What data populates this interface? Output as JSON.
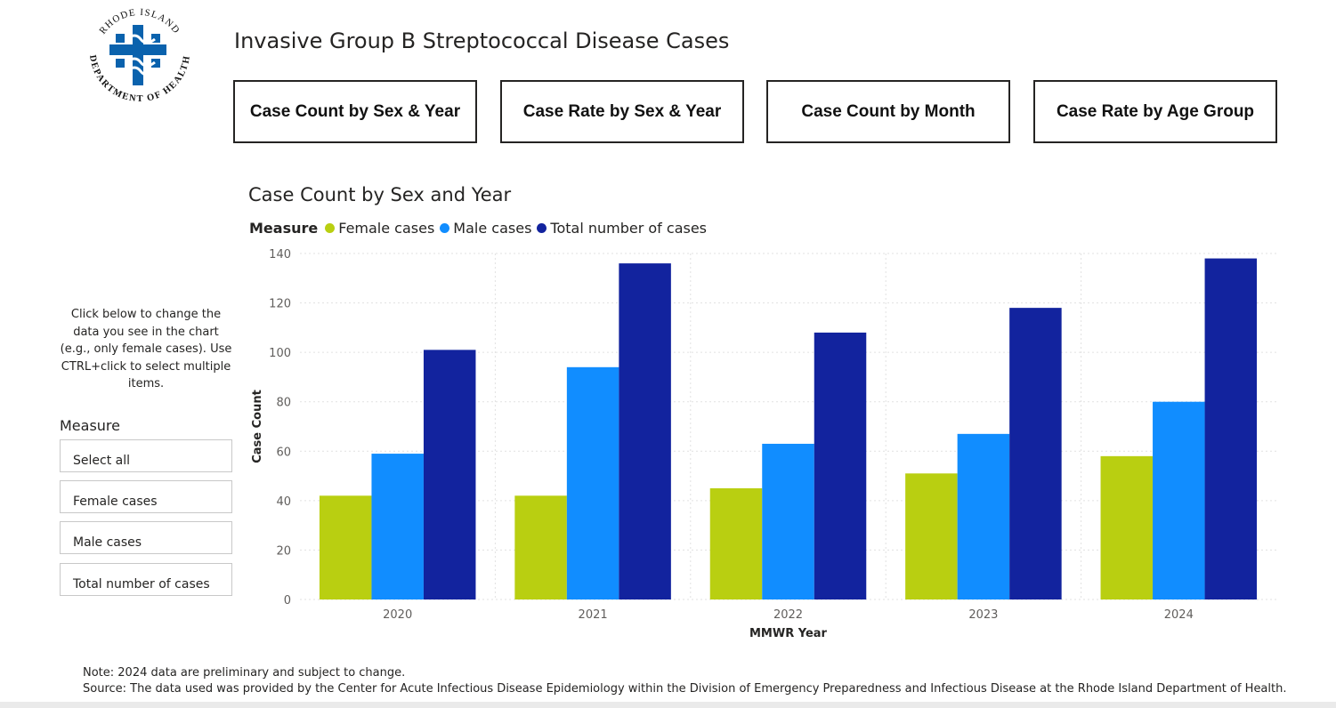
{
  "logo": {
    "text_top": "RHODE ISLAND",
    "text_bottom": "DEPARTMENT OF HEALTH",
    "color": "#0a62ad"
  },
  "header": {
    "title": "Invasive Group B Streptococcal Disease Cases"
  },
  "nav": {
    "buttons": [
      {
        "label": "Case Count by Sex & Year"
      },
      {
        "label": "Case Rate by Sex & Year"
      },
      {
        "label": "Case Count by Month"
      },
      {
        "label": "Case Rate by Age Group"
      }
    ]
  },
  "sidebar": {
    "instructions": "Click below to change the data you see in the chart (e.g., only female cases). Use CTRL+click to select multiple items.",
    "slicer_title": "Measure",
    "items": [
      "Select all",
      "Female cases",
      "Male cases",
      "Total number of cases"
    ]
  },
  "chart_data": {
    "type": "bar",
    "title": "Case Count by Sex and Year",
    "legend_title": "Measure",
    "xlabel": "MMWR Year",
    "ylabel": "Case Count",
    "categories": [
      "2020",
      "2021",
      "2022",
      "2023",
      "2024"
    ],
    "ylim": [
      0,
      140
    ],
    "yticks": [
      0,
      20,
      40,
      60,
      80,
      100,
      120,
      140
    ],
    "grid": true,
    "series": [
      {
        "name": "Female cases",
        "color": "#b9cf11",
        "values": [
          42,
          42,
          45,
          51,
          58
        ]
      },
      {
        "name": "Male cases",
        "color": "#118dff",
        "values": [
          59,
          94,
          63,
          67,
          80
        ]
      },
      {
        "name": "Total number of cases",
        "color": "#12239e",
        "values": [
          101,
          136,
          108,
          118,
          138
        ]
      }
    ]
  },
  "footer": {
    "note": "Note: 2024 data are preliminary and subject to change.",
    "source": "Source: The data used was provided by the Center for Acute Infectious Disease Epidemiology within the Division of Emergency Preparedness and Infectious Disease at the Rhode Island Department of Health."
  }
}
